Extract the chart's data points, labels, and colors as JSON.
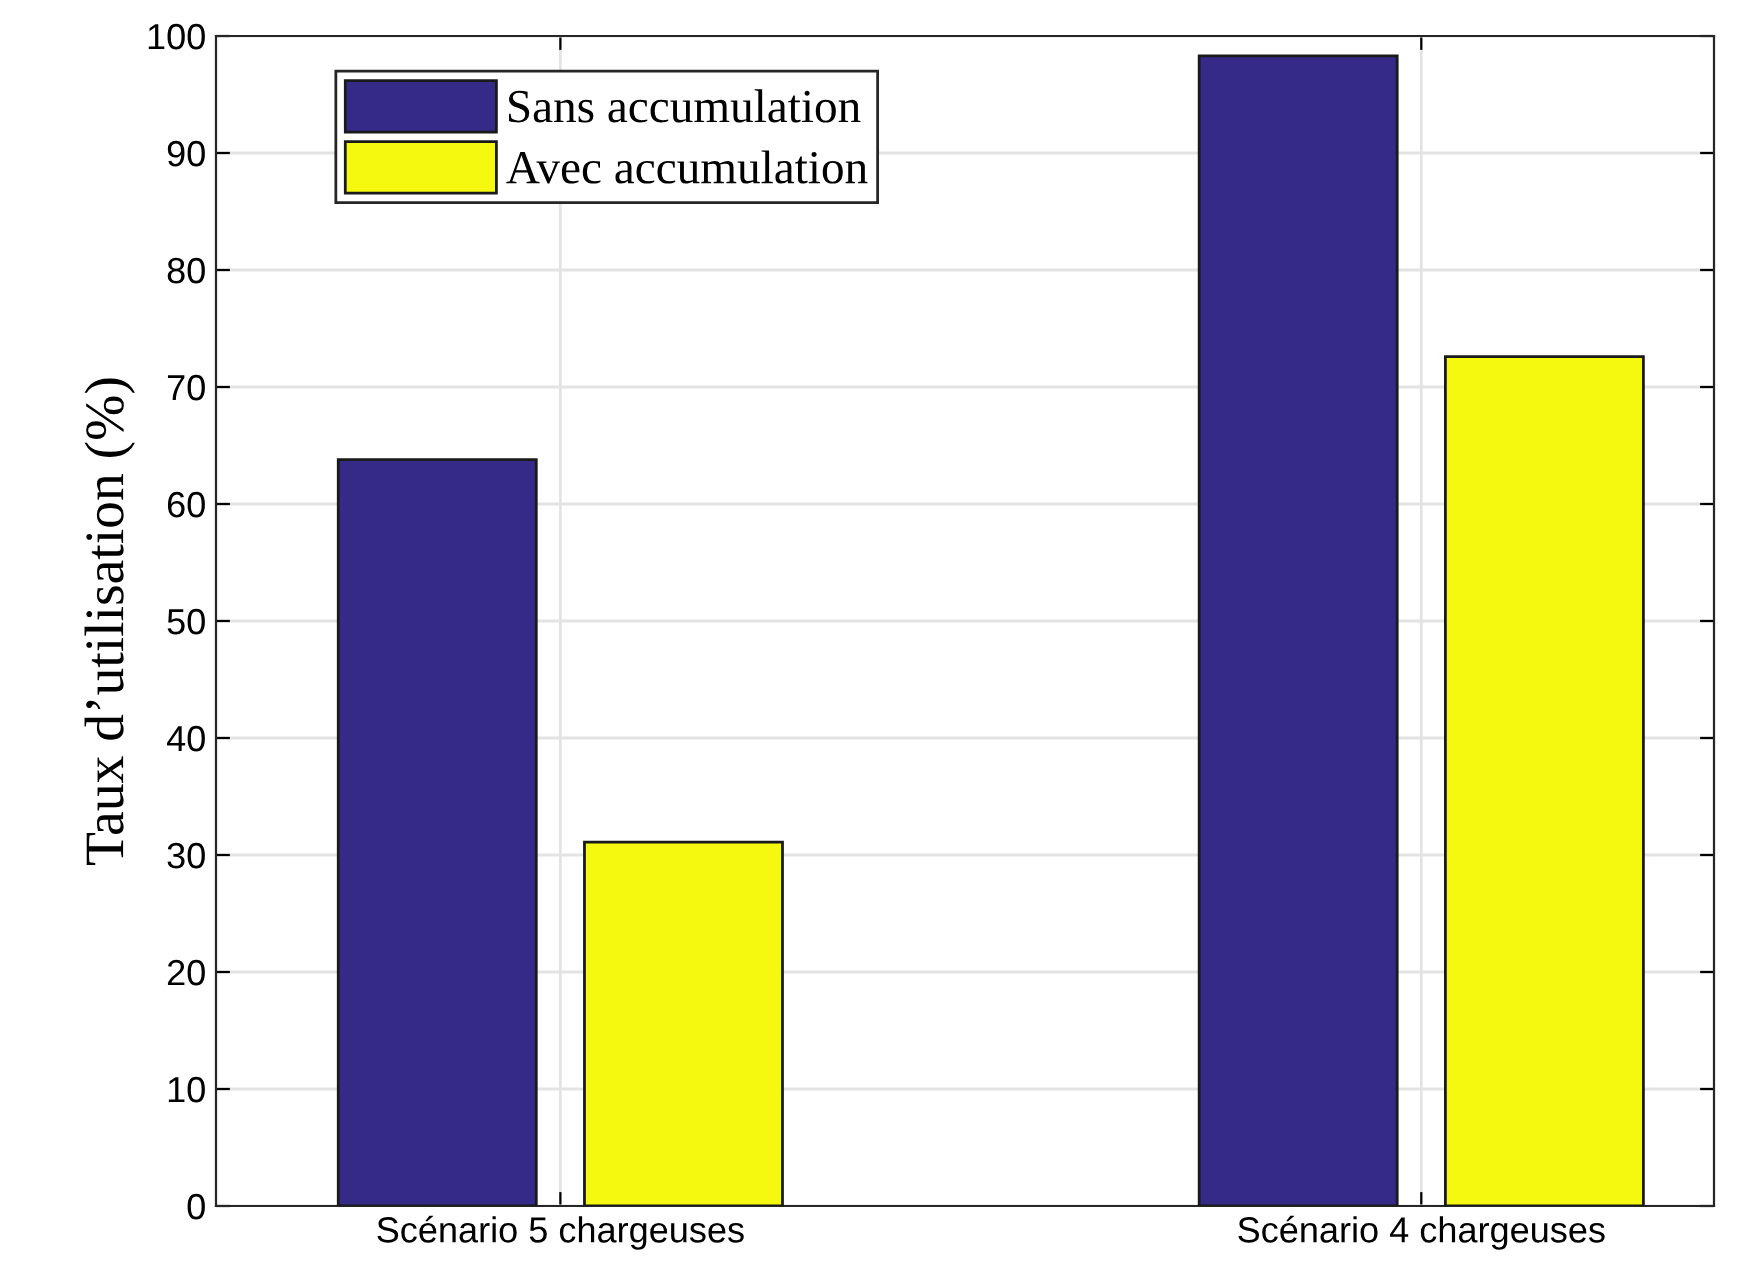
{
  "chart_data": {
    "type": "bar",
    "ylabel": "Taux d’utilisation (%)",
    "categories": [
      "Scénario 5 chargeuses",
      "Scénario 4 chargeuses"
    ],
    "series": [
      {
        "name": "Sans accumulation",
        "color": "#352a87",
        "values": [
          63.8,
          98.3
        ]
      },
      {
        "name": "Avec accumulation",
        "color": "#f5f910",
        "values": [
          31.1,
          72.6
        ]
      }
    ],
    "ylim": [
      0,
      100
    ],
    "yticks": [
      0,
      10,
      20,
      30,
      40,
      50,
      60,
      70,
      80,
      90,
      100
    ],
    "grid": true,
    "legend": "top left"
  }
}
